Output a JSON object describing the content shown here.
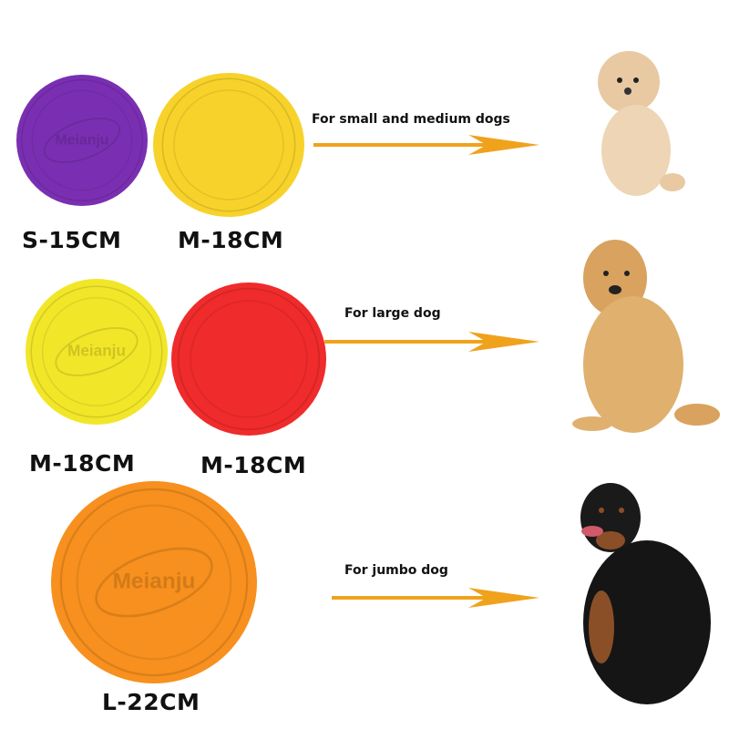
{
  "logo_text": "Meianju",
  "colors": {
    "purple": "#7a2fb2",
    "yellow_m": "#f7d22a",
    "yellow": "#f2e629",
    "red": "#ef2b2b",
    "orange": "#f7901e",
    "arrow": "#f0a21c"
  },
  "rows": [
    {
      "discs": [
        {
          "label": "S-15CM",
          "color": "purple"
        },
        {
          "label": "M-18CM",
          "color": "yellow_m"
        }
      ],
      "caption": "For small and medium dogs",
      "dog": "poodle"
    },
    {
      "discs": [
        {
          "label": "M-18CM",
          "color": "yellow"
        },
        {
          "label": "M-18CM",
          "color": "red"
        }
      ],
      "caption": "For large dog",
      "dog": "golden-retriever"
    },
    {
      "discs": [
        {
          "label": "L-22CM",
          "color": "orange"
        }
      ],
      "caption": "For jumbo dog",
      "dog": "rottweiler"
    }
  ]
}
